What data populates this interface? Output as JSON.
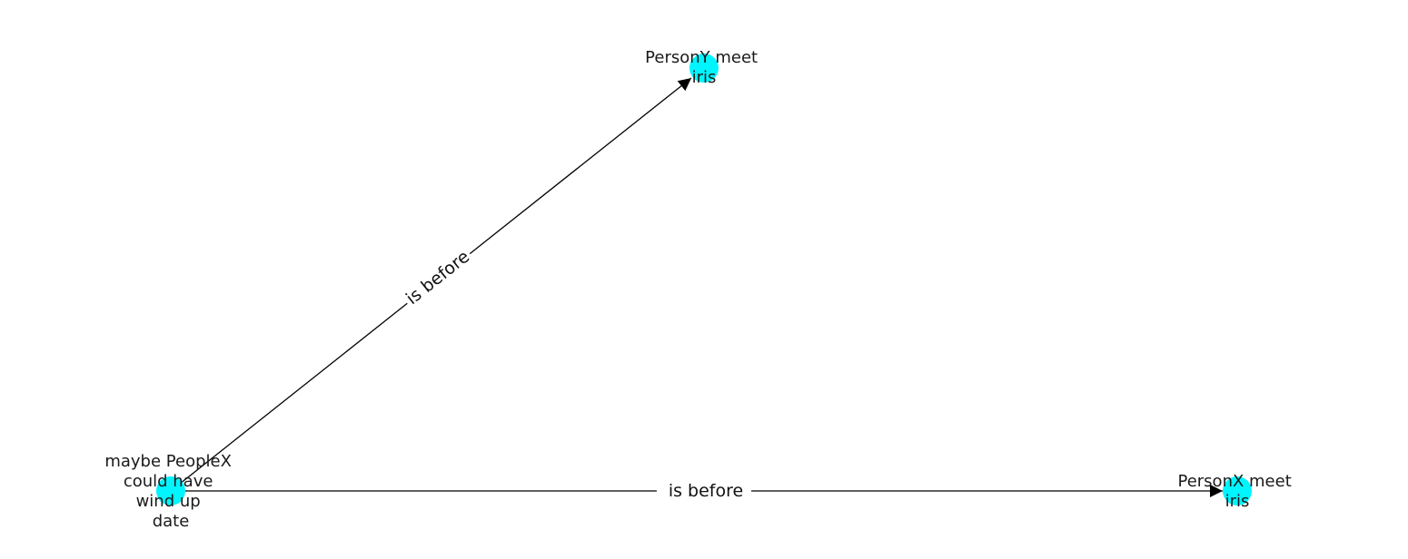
{
  "diagram": {
    "node_color": "#00f5ff",
    "edge_color": "#000000",
    "nodes": [
      {
        "id": "n1",
        "label_lines": [
          "maybe PeopleX",
          "could have",
          "wind up",
          "date"
        ]
      },
      {
        "id": "n2",
        "label_lines": [
          "PersonY meet",
          "iris"
        ]
      },
      {
        "id": "n3",
        "label_lines": [
          "PersonX meet",
          "iris"
        ]
      }
    ],
    "edges": [
      {
        "from": "n1",
        "to": "n2",
        "label": "is before"
      },
      {
        "from": "n1",
        "to": "n3",
        "label": "is before"
      }
    ]
  }
}
